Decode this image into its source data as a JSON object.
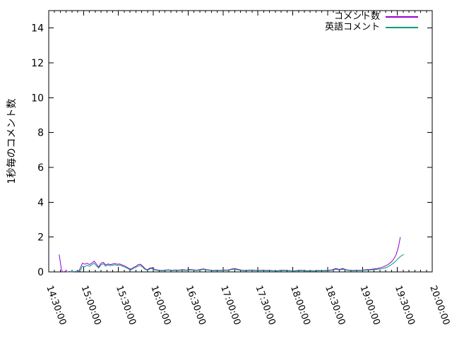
{
  "chart_data": {
    "type": "line",
    "title": "",
    "ylabel": "1秒毎のコメント数",
    "xlabel": "",
    "ylim": [
      0,
      15
    ],
    "y_ticks": [
      0,
      2,
      4,
      6,
      8,
      10,
      12,
      14
    ],
    "xlim_minutes": [
      0,
      330
    ],
    "x_major_tick_minutes": 30,
    "x_minor_tick_minutes": 5,
    "x_tick_labels": [
      "14:30:00",
      "15:00:00",
      "15:30:00",
      "16:00:00",
      "16:30:00",
      "17:00:00",
      "17:30:00",
      "18:00:00",
      "18:30:00",
      "19:00:00",
      "19:30:00",
      "20:00:00"
    ],
    "grid": false,
    "legend_position": "top-right-inside",
    "frame_color": "#000000",
    "background_color": "#ffffff",
    "series": [
      {
        "name": "コメント数",
        "color": "#9400d3",
        "points": [
          [
            9,
            1.0
          ],
          [
            11,
            0.1
          ],
          [
            12,
            0
          ],
          [
            14,
            0.02
          ],
          [
            16,
            0
          ],
          [
            18,
            0.03
          ],
          [
            20,
            0
          ],
          [
            23,
            0.03
          ],
          [
            26,
            0.05
          ],
          [
            29,
            0.5
          ],
          [
            31,
            0.44
          ],
          [
            33,
            0.5
          ],
          [
            35,
            0.42
          ],
          [
            37,
            0.5
          ],
          [
            39,
            0.62
          ],
          [
            41,
            0.45
          ],
          [
            43,
            0.28
          ],
          [
            45,
            0.5
          ],
          [
            47,
            0.55
          ],
          [
            49,
            0.4
          ],
          [
            51,
            0.46
          ],
          [
            53,
            0.42
          ],
          [
            55,
            0.45
          ],
          [
            57,
            0.48
          ],
          [
            59,
            0.44
          ],
          [
            61,
            0.46
          ],
          [
            63,
            0.4
          ],
          [
            65,
            0.35
          ],
          [
            67,
            0.28
          ],
          [
            69,
            0.2
          ],
          [
            71,
            0.16
          ],
          [
            73,
            0.26
          ],
          [
            75,
            0.32
          ],
          [
            77,
            0.42
          ],
          [
            79,
            0.44
          ],
          [
            81,
            0.32
          ],
          [
            83,
            0.18
          ],
          [
            85,
            0.13
          ],
          [
            87,
            0.22
          ],
          [
            89,
            0.24
          ],
          [
            91,
            0.15
          ],
          [
            94,
            0.1
          ],
          [
            97,
            0.08
          ],
          [
            100,
            0.1
          ],
          [
            103,
            0.12
          ],
          [
            106,
            0.09
          ],
          [
            109,
            0.11
          ],
          [
            112,
            0.1
          ],
          [
            115,
            0.13
          ],
          [
            118,
            0.1
          ],
          [
            121,
            0.14
          ],
          [
            124,
            0.12
          ],
          [
            127,
            0.1
          ],
          [
            130,
            0.13
          ],
          [
            133,
            0.17
          ],
          [
            136,
            0.13
          ],
          [
            139,
            0.1
          ],
          [
            142,
            0.08
          ],
          [
            145,
            0.1
          ],
          [
            148,
            0.09
          ],
          [
            151,
            0.11
          ],
          [
            154,
            0.1
          ],
          [
            157,
            0.16
          ],
          [
            160,
            0.2
          ],
          [
            163,
            0.14
          ],
          [
            166,
            0.1
          ],
          [
            169,
            0.08
          ],
          [
            172,
            0.1
          ],
          [
            175,
            0.11
          ],
          [
            178,
            0.09
          ],
          [
            181,
            0.08
          ],
          [
            184,
            0.1
          ],
          [
            187,
            0.08
          ],
          [
            190,
            0.09
          ],
          [
            193,
            0.07
          ],
          [
            196,
            0.06
          ],
          [
            199,
            0.08
          ],
          [
            202,
            0.1
          ],
          [
            205,
            0.08
          ],
          [
            208,
            0.07
          ],
          [
            211,
            0.06
          ],
          [
            214,
            0.08
          ],
          [
            217,
            0.09
          ],
          [
            220,
            0.08
          ],
          [
            223,
            0.06
          ],
          [
            226,
            0.07
          ],
          [
            229,
            0.06
          ],
          [
            232,
            0.08
          ],
          [
            235,
            0.07
          ],
          [
            238,
            0.08
          ],
          [
            241,
            0.09
          ],
          [
            244,
            0.12
          ],
          [
            247,
            0.2
          ],
          [
            250,
            0.14
          ],
          [
            253,
            0.2
          ],
          [
            256,
            0.12
          ],
          [
            259,
            0.09
          ],
          [
            262,
            0.08
          ],
          [
            265,
            0.1
          ],
          [
            268,
            0.09
          ],
          [
            271,
            0.11
          ],
          [
            274,
            0.13
          ],
          [
            277,
            0.14
          ],
          [
            280,
            0.17
          ],
          [
            283,
            0.2
          ],
          [
            286,
            0.25
          ],
          [
            289,
            0.32
          ],
          [
            292,
            0.42
          ],
          [
            295,
            0.58
          ],
          [
            297,
            0.75
          ],
          [
            299,
            1.0
          ],
          [
            301,
            1.45
          ],
          [
            302.5,
            2.0
          ]
        ]
      },
      {
        "name": "英語コメント",
        "color": "#009e73",
        "points": [
          [
            17,
            0
          ],
          [
            20,
            0.02
          ],
          [
            24,
            0.02
          ],
          [
            27,
            0.04
          ],
          [
            29,
            0.33
          ],
          [
            31,
            0.3
          ],
          [
            33,
            0.38
          ],
          [
            35,
            0.32
          ],
          [
            37,
            0.4
          ],
          [
            39,
            0.5
          ],
          [
            41,
            0.35
          ],
          [
            43,
            0.22
          ],
          [
            45,
            0.4
          ],
          [
            47,
            0.47
          ],
          [
            49,
            0.33
          ],
          [
            51,
            0.4
          ],
          [
            53,
            0.36
          ],
          [
            55,
            0.38
          ],
          [
            57,
            0.41
          ],
          [
            59,
            0.37
          ],
          [
            61,
            0.4
          ],
          [
            63,
            0.34
          ],
          [
            65,
            0.29
          ],
          [
            67,
            0.23
          ],
          [
            69,
            0.16
          ],
          [
            71,
            0.12
          ],
          [
            73,
            0.21
          ],
          [
            75,
            0.26
          ],
          [
            77,
            0.34
          ],
          [
            79,
            0.37
          ],
          [
            81,
            0.26
          ],
          [
            83,
            0.14
          ],
          [
            85,
            0.1
          ],
          [
            87,
            0.17
          ],
          [
            89,
            0.19
          ],
          [
            91,
            0.12
          ],
          [
            94,
            0.08
          ],
          [
            97,
            0.06
          ],
          [
            100,
            0.08
          ],
          [
            103,
            0.1
          ],
          [
            106,
            0.07
          ],
          [
            109,
            0.09
          ],
          [
            112,
            0.08
          ],
          [
            115,
            0.1
          ],
          [
            118,
            0.08
          ],
          [
            121,
            0.11
          ],
          [
            124,
            0.1
          ],
          [
            127,
            0.08
          ],
          [
            130,
            0.1
          ],
          [
            133,
            0.14
          ],
          [
            136,
            0.11
          ],
          [
            139,
            0.08
          ],
          [
            142,
            0.06
          ],
          [
            145,
            0.08
          ],
          [
            148,
            0.07
          ],
          [
            151,
            0.09
          ],
          [
            154,
            0.08
          ],
          [
            157,
            0.13
          ],
          [
            160,
            0.16
          ],
          [
            163,
            0.11
          ],
          [
            166,
            0.08
          ],
          [
            169,
            0.06
          ],
          [
            172,
            0.08
          ],
          [
            175,
            0.09
          ],
          [
            178,
            0.07
          ],
          [
            181,
            0.06
          ],
          [
            184,
            0.08
          ],
          [
            187,
            0.06
          ],
          [
            190,
            0.07
          ],
          [
            193,
            0.06
          ],
          [
            196,
            0.05
          ],
          [
            199,
            0.06
          ],
          [
            202,
            0.08
          ],
          [
            205,
            0.06
          ],
          [
            208,
            0.06
          ],
          [
            211,
            0.05
          ],
          [
            214,
            0.06
          ],
          [
            217,
            0.07
          ],
          [
            220,
            0.06
          ],
          [
            223,
            0.05
          ],
          [
            226,
            0.06
          ],
          [
            229,
            0.05
          ],
          [
            232,
            0.06
          ],
          [
            235,
            0.06
          ],
          [
            238,
            0.06
          ],
          [
            241,
            0.07
          ],
          [
            244,
            0.1
          ],
          [
            247,
            0.15
          ],
          [
            250,
            0.11
          ],
          [
            253,
            0.15
          ],
          [
            256,
            0.1
          ],
          [
            259,
            0.07
          ],
          [
            262,
            0.06
          ],
          [
            265,
            0.08
          ],
          [
            268,
            0.07
          ],
          [
            271,
            0.09
          ],
          [
            274,
            0.1
          ],
          [
            277,
            0.11
          ],
          [
            280,
            0.13
          ],
          [
            283,
            0.15
          ],
          [
            286,
            0.18
          ],
          [
            289,
            0.22
          ],
          [
            292,
            0.3
          ],
          [
            295,
            0.42
          ],
          [
            298,
            0.58
          ],
          [
            300,
            0.72
          ],
          [
            302,
            0.85
          ],
          [
            304,
            0.95
          ],
          [
            305.5,
            1.0
          ]
        ]
      }
    ]
  }
}
